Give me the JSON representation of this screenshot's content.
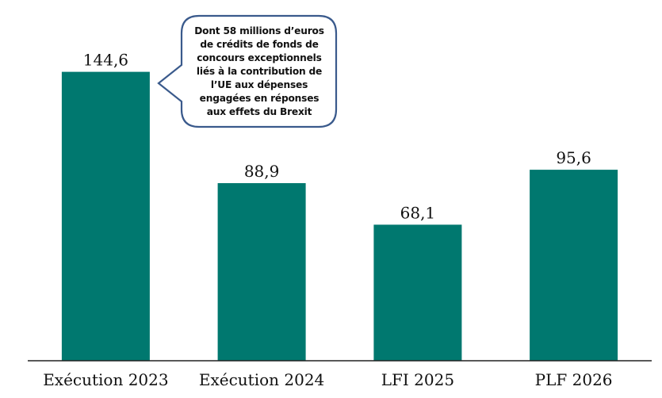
{
  "chart_data": {
    "type": "bar",
    "title": "",
    "xlabel": "",
    "ylabel": "",
    "categories": [
      "Exécution 2023",
      "Exécution 2024",
      "LFI 2025",
      "PLF 2026"
    ],
    "values": [
      144.6,
      88.9,
      68.1,
      95.6
    ],
    "value_labels": [
      "144,6",
      "88,9",
      "68,1",
      "95,6"
    ],
    "ylim": [
      0,
      150
    ],
    "grid": false,
    "legend": "none",
    "bar_color": "#00786F",
    "annotations": [
      {
        "target_category": "Exécution 2023",
        "text": "Dont 58 millions d’euros\nde crédits de fonds de\nconcours exceptionnels\nliés à la contribution de\nl’UE aux dépenses\nengagées en réponses\naux effets du Brexit",
        "border_color": "#3A5A8C"
      }
    ]
  }
}
